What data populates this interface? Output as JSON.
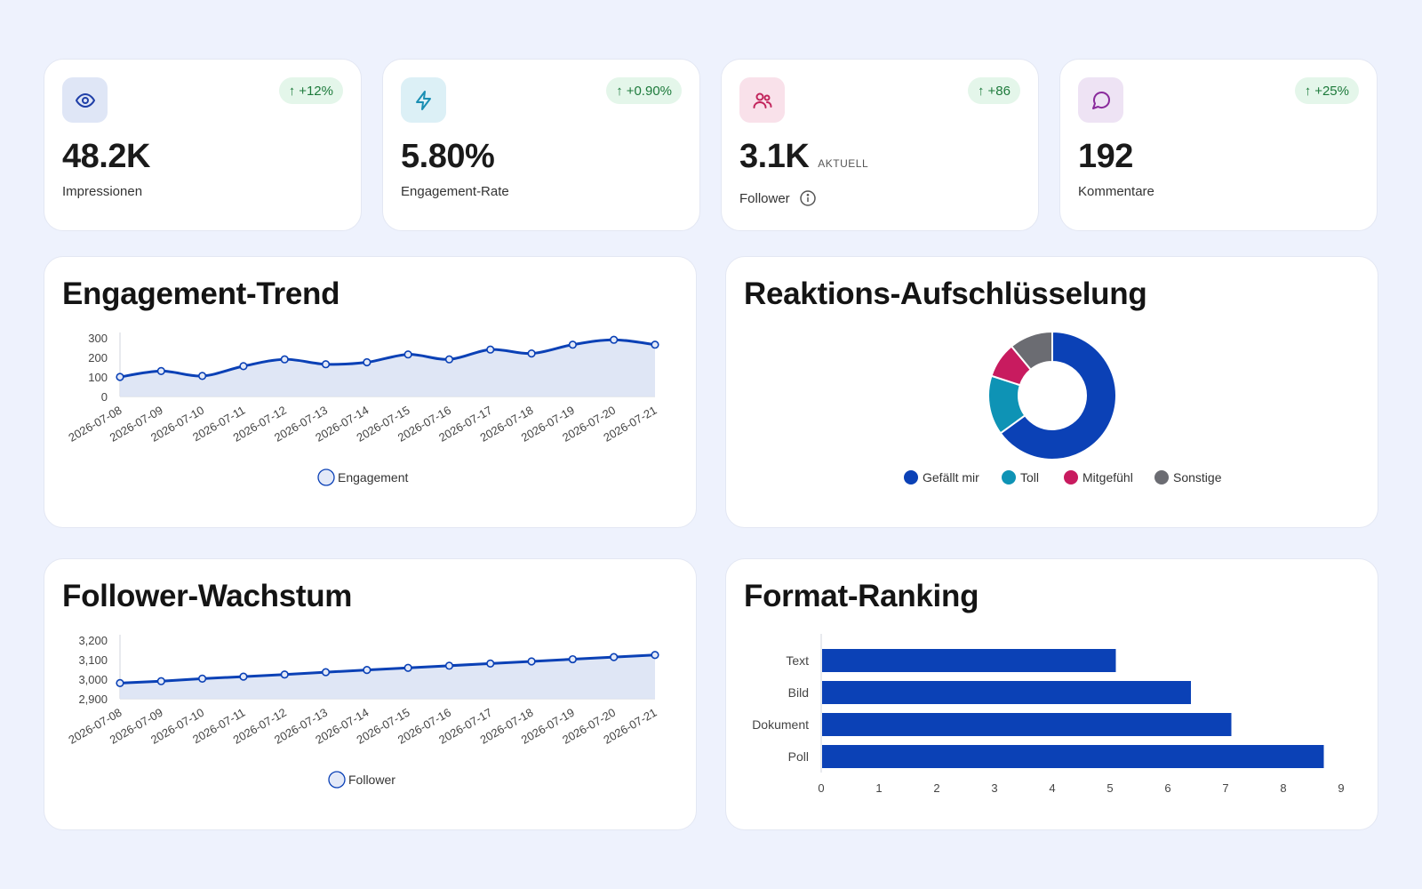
{
  "kpis": [
    {
      "value": "48.2K",
      "suffix": "",
      "label": "Impressionen",
      "delta": "+12%",
      "icon": "eye-icon",
      "icon_bg": "#dfe6f6",
      "icon_color": "#1f3fa8"
    },
    {
      "value": "5.80%",
      "suffix": "",
      "label": "Engagement-Rate",
      "delta": "+0.90%",
      "icon": "lightning-icon",
      "icon_bg": "#dcf0f6",
      "icon_color": "#1a8fb3"
    },
    {
      "value": "3.1K",
      "suffix": "AKTUELL",
      "label": "Follower",
      "delta": "+86",
      "icon": "users-icon",
      "icon_bg": "#f9e1ea",
      "icon_color": "#c2255c"
    },
    {
      "value": "192",
      "suffix": "",
      "label": "Kommentare",
      "delta": "+25%",
      "icon": "comment-icon",
      "icon_bg": "#eee3f4",
      "icon_color": "#8a2b9c"
    }
  ],
  "panels": {
    "engagement_trend": "Engagement-Trend",
    "reactions": "Reaktions-Aufschlüsselung",
    "follower_growth": "Follower-Wachstum",
    "format_ranking": "Format-Ranking"
  },
  "colors": {
    "primary": "#0b41b6",
    "area_fill": "#dbe3f4",
    "teal": "#0e93b5",
    "magenta": "#c81b5f",
    "gray": "#6b6c72",
    "badge_bg": "#e4f6ea",
    "badge_text": "#1d7a3b"
  },
  "chart_data": [
    {
      "type": "area",
      "x": [
        "2026-07-08",
        "2026-07-09",
        "2026-07-10",
        "2026-07-11",
        "2026-07-12",
        "2026-07-13",
        "2026-07-14",
        "2026-07-15",
        "2026-07-16",
        "2026-07-17",
        "2026-07-18",
        "2026-07-19",
        "2026-07-20",
        "2026-07-21"
      ],
      "series": [
        {
          "name": "Engagement",
          "values": [
            100,
            130,
            105,
            155,
            190,
            165,
            175,
            215,
            190,
            240,
            220,
            265,
            290,
            265
          ]
        }
      ],
      "y_ticks": [
        "0",
        "100",
        "200",
        "300"
      ],
      "ylim": [
        0,
        300
      ],
      "legend": "bottom"
    },
    {
      "type": "pie",
      "categories": [
        "Gefällt mir",
        "Toll",
        "Mitgefühl",
        "Sonstige"
      ],
      "values": [
        65,
        15,
        9,
        11
      ],
      "colors": [
        "#0b41b6",
        "#0e93b5",
        "#c81b5f",
        "#6b6c72"
      ],
      "legend": "bottom"
    },
    {
      "type": "area",
      "x": [
        "2026-07-08",
        "2026-07-09",
        "2026-07-10",
        "2026-07-11",
        "2026-07-12",
        "2026-07-13",
        "2026-07-14",
        "2026-07-15",
        "2026-07-16",
        "2026-07-17",
        "2026-07-18",
        "2026-07-19",
        "2026-07-20",
        "2026-07-21"
      ],
      "series": [
        {
          "name": "Follower",
          "values": [
            2980,
            2990,
            3003,
            3013,
            3024,
            3036,
            3047,
            3058,
            3069,
            3080,
            3091,
            3102,
            3113,
            3124
          ]
        }
      ],
      "y_ticks": [
        "2,900",
        "3,000",
        "3,100",
        "3,200"
      ],
      "ylim": [
        2900,
        3200
      ],
      "legend": "bottom"
    },
    {
      "type": "bar",
      "orientation": "horizontal",
      "categories": [
        "Text",
        "Bild",
        "Dokument",
        "Poll"
      ],
      "values": [
        5.1,
        6.4,
        7.1,
        8.7
      ],
      "x_ticks": [
        "0",
        "1",
        "2",
        "3",
        "4",
        "5",
        "6",
        "7",
        "8",
        "9"
      ],
      "xlim": [
        0,
        9
      ]
    }
  ]
}
